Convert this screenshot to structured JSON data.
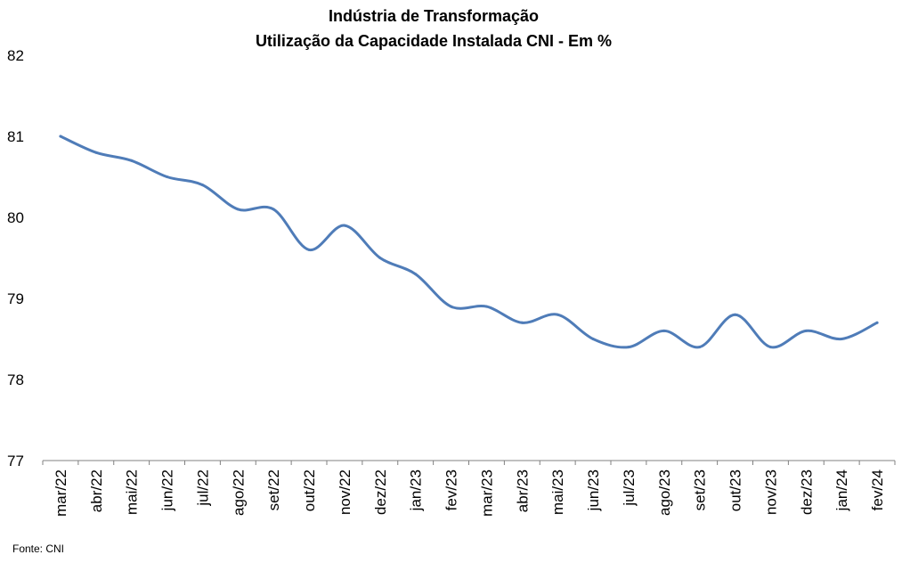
{
  "chart_data": {
    "type": "line",
    "title": "Indústria de Transformação",
    "subtitle": "Utilização da Capacidade Instalada CNI - Em %",
    "categories": [
      "mar/22",
      "abr/22",
      "mai/22",
      "jun/22",
      "jul/22",
      "ago/22",
      "set/22",
      "out/22",
      "nov/22",
      "dez/22",
      "jan/23",
      "fev/23",
      "mar/23",
      "abr/23",
      "mai/23",
      "jun/23",
      "jul/23",
      "ago/23",
      "set/23",
      "out/23",
      "nov/23",
      "dez/23",
      "jan/24",
      "fev/24"
    ],
    "series": [
      {
        "values": [
          81.0,
          80.8,
          80.7,
          80.5,
          80.4,
          80.1,
          80.1,
          79.6,
          79.9,
          79.5,
          79.3,
          78.9,
          78.9,
          78.7,
          78.8,
          78.5,
          78.4,
          78.6,
          78.4,
          78.8,
          78.4,
          78.6,
          78.5,
          78.7
        ]
      }
    ],
    "ylim": [
      77,
      82
    ],
    "yticks": [
      "77",
      "78",
      "79",
      "80",
      "81",
      "82"
    ],
    "series_color": "#4F7CB8",
    "grid": false,
    "legend": "none"
  },
  "source": "Fonte: CNI"
}
